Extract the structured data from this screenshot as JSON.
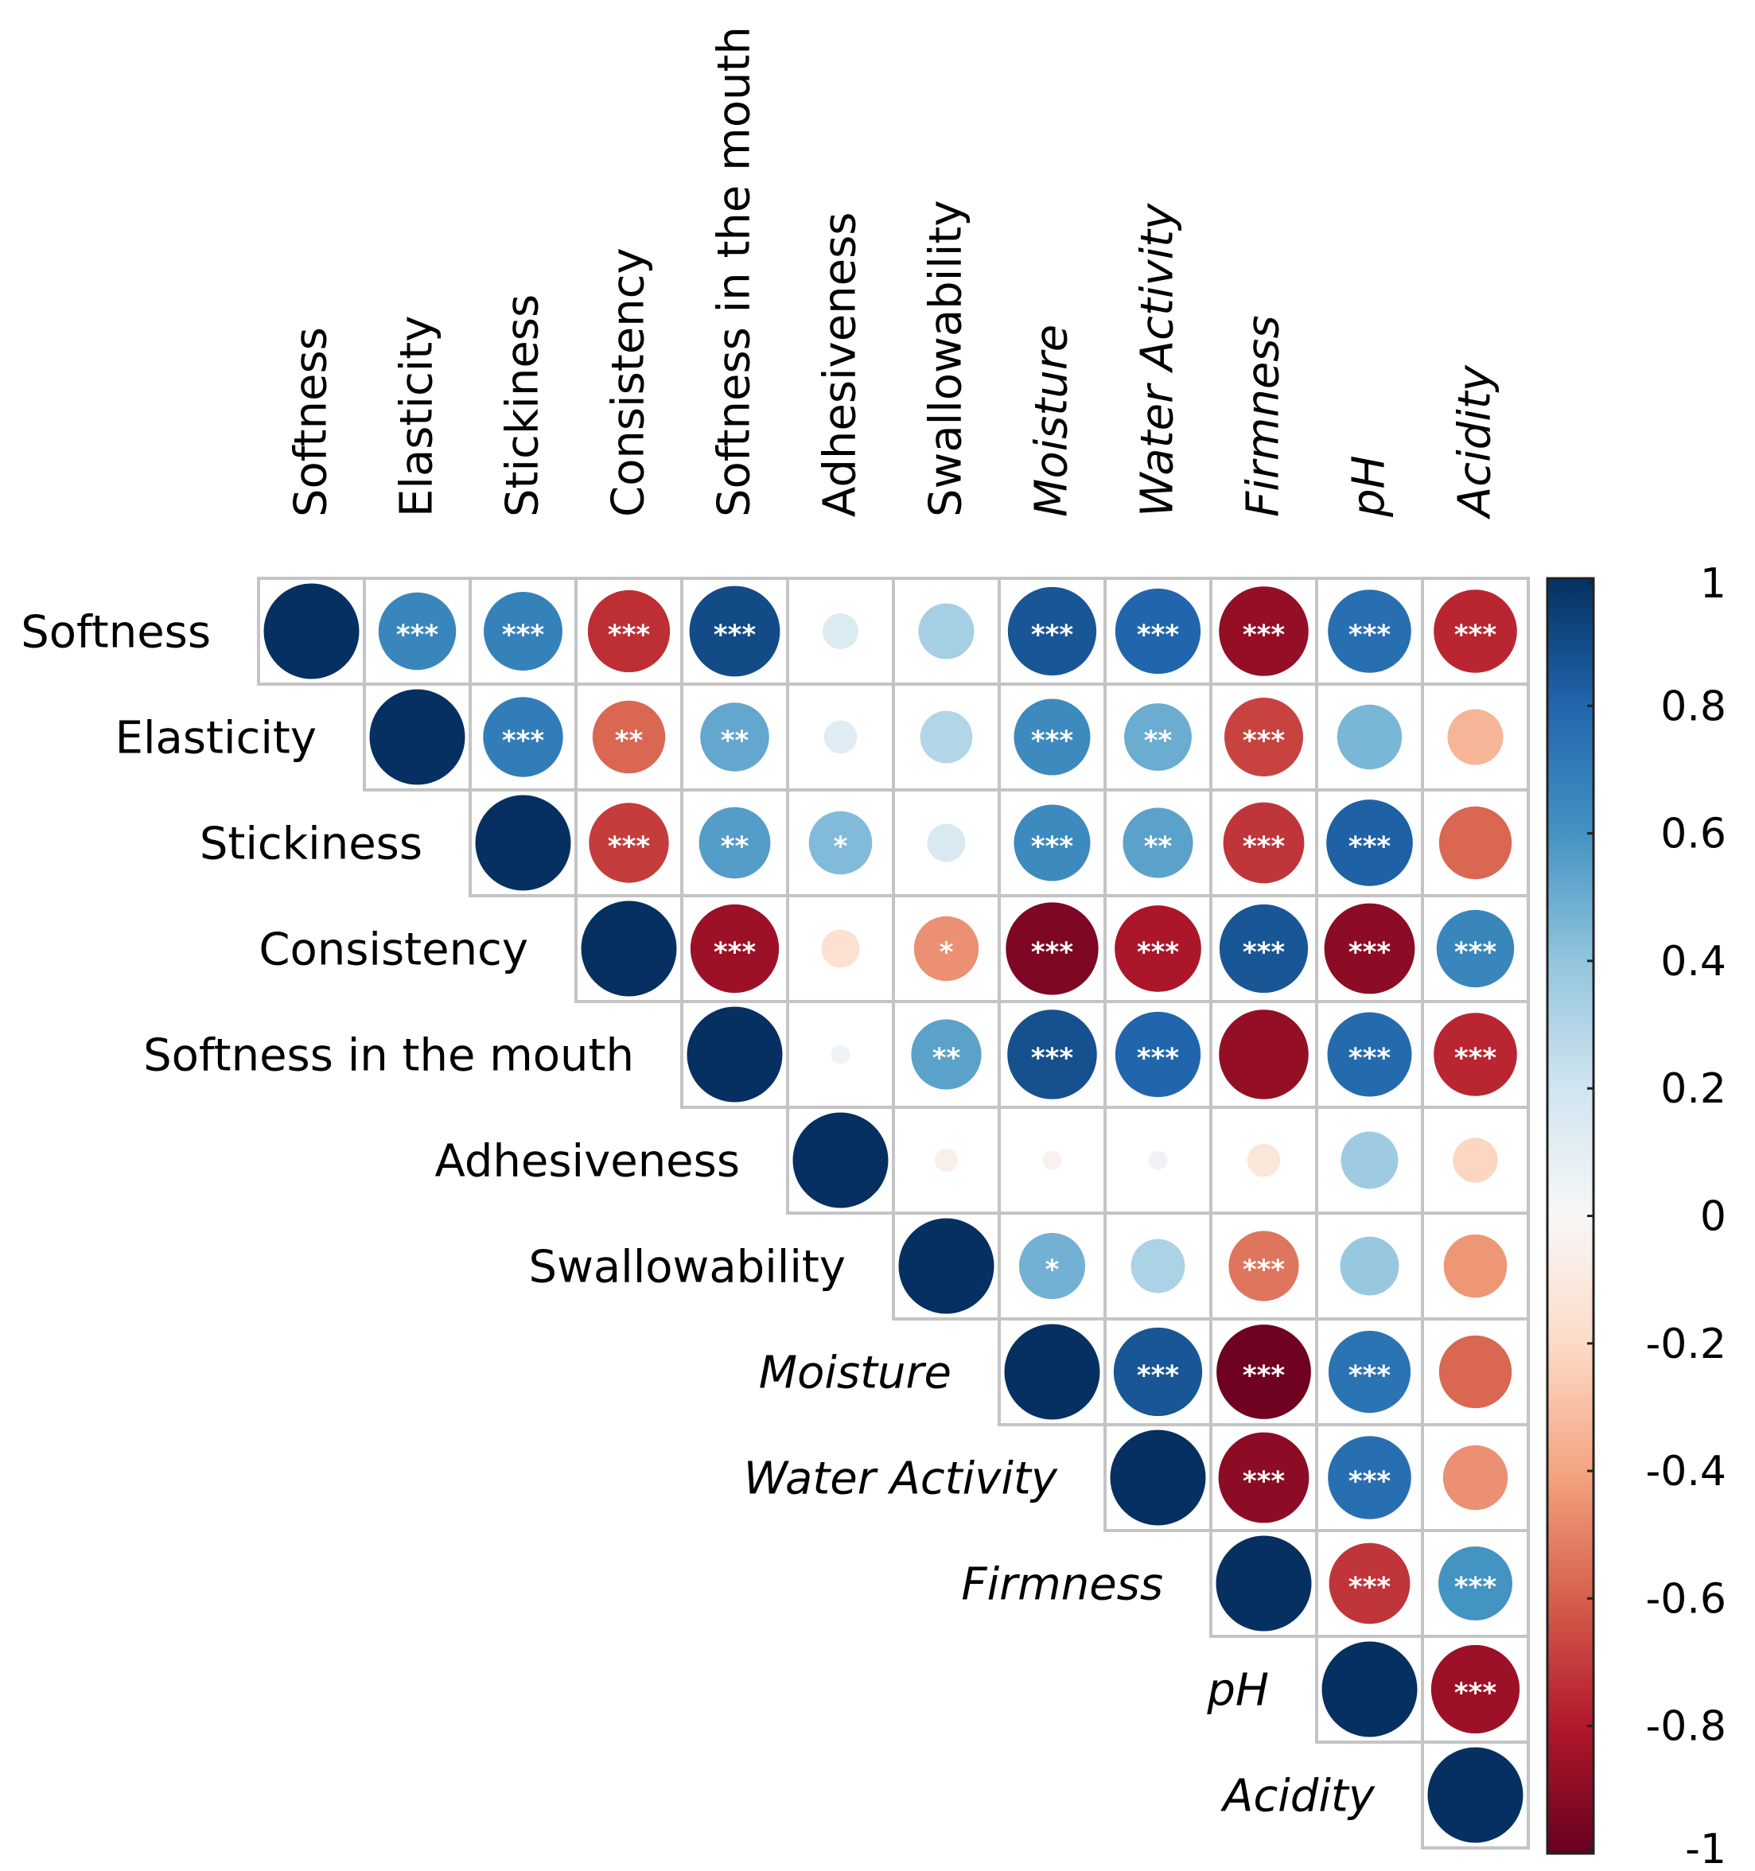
{
  "chart_data": {
    "type": "heatmap",
    "subtype": "correlation-matrix-upper-triangle",
    "variables": [
      "Softness",
      "Elasticity",
      "Stickiness",
      "Consistency",
      "Softness in the mouth",
      "Adhesiveness",
      "Swallowability",
      "Moisture",
      "Water Activity",
      "Firmness",
      "pH",
      "Acidity"
    ],
    "italic_variables": [
      "Moisture",
      "Water Activity",
      "Firmness",
      "pH",
      "Acidity"
    ],
    "correlations": [
      [
        1,
        0.66,
        0.68,
        -0.74,
        0.9,
        0.14,
        0.34,
        0.86,
        0.8,
        -0.88,
        0.76,
        -0.76
      ],
      [
        null,
        1,
        0.7,
        -0.58,
        0.52,
        0.12,
        0.3,
        0.64,
        0.5,
        -0.68,
        0.46,
        -0.34
      ],
      [
        null,
        null,
        1,
        -0.7,
        0.56,
        0.44,
        0.16,
        0.64,
        0.54,
        -0.72,
        0.82,
        -0.58
      ],
      [
        null,
        null,
        null,
        1,
        -0.86,
        -0.16,
        -0.46,
        -0.94,
        -0.82,
        0.86,
        -0.9,
        0.66
      ],
      [
        null,
        null,
        null,
        null,
        1,
        0.04,
        0.54,
        0.88,
        0.8,
        -0.88,
        0.78,
        -0.76
      ],
      [
        null,
        null,
        null,
        null,
        null,
        1,
        -0.06,
        -0.04,
        0.04,
        -0.12,
        0.36,
        -0.22
      ],
      [
        null,
        null,
        null,
        null,
        null,
        null,
        1,
        0.48,
        0.32,
        -0.54,
        0.38,
        -0.44
      ],
      [
        null,
        null,
        null,
        null,
        null,
        null,
        null,
        1,
        0.86,
        -0.98,
        0.74,
        -0.58
      ],
      [
        null,
        null,
        null,
        null,
        null,
        null,
        null,
        null,
        1,
        -0.9,
        0.76,
        -0.46
      ],
      [
        null,
        null,
        null,
        null,
        null,
        null,
        null,
        null,
        null,
        1,
        -0.72,
        0.6
      ],
      [
        null,
        null,
        null,
        null,
        null,
        null,
        null,
        null,
        null,
        null,
        1,
        -0.86
      ],
      [
        null,
        null,
        null,
        null,
        null,
        null,
        null,
        null,
        null,
        null,
        null,
        1
      ]
    ],
    "significance": [
      [
        "",
        "***",
        "***",
        "***",
        "***",
        "",
        "",
        "***",
        "***",
        "***",
        "***",
        "***"
      ],
      [
        "",
        "",
        "***",
        "**",
        "**",
        "",
        "",
        "***",
        "**",
        "***",
        "",
        ""
      ],
      [
        "",
        "",
        "",
        "***",
        "**",
        "*",
        "",
        "***",
        "**",
        "***",
        "***",
        ""
      ],
      [
        "",
        "",
        "",
        "",
        "***",
        "",
        "*",
        "***",
        "***",
        "***",
        "***",
        "***"
      ],
      [
        "",
        "",
        "",
        "",
        "",
        "",
        "**",
        "***",
        "***",
        "",
        "***",
        "***"
      ],
      [
        "",
        "",
        "",
        "",
        "",
        "",
        "",
        "",
        "",
        "",
        "",
        ""
      ],
      [
        "",
        "",
        "",
        "",
        "",
        "",
        "",
        "*",
        "",
        "***",
        "",
        ""
      ],
      [
        "",
        "",
        "",
        "",
        "",
        "",
        "",
        "",
        "***",
        "***",
        "***",
        ""
      ],
      [
        "",
        "",
        "",
        "",
        "",
        "",
        "",
        "",
        "",
        "***",
        "***",
        ""
      ],
      [
        "",
        "",
        "",
        "",
        "",
        "",
        "",
        "",
        "",
        "",
        "***",
        "***"
      ],
      [
        "",
        "",
        "",
        "",
        "",
        "",
        "",
        "",
        "",
        "",
        "",
        "***"
      ],
      [
        "",
        "",
        "",
        "",
        "",
        "",
        "",
        "",
        "",
        "",
        "",
        ""
      ]
    ],
    "colorbar": {
      "range": [
        -1,
        1
      ],
      "ticks": [
        "1",
        "0.8",
        "0.6",
        "0.4",
        "0.2",
        "0",
        "-0.2",
        "-0.4",
        "-0.6",
        "-0.8",
        "-1"
      ],
      "tick_values": [
        1,
        0.8,
        0.6,
        0.4,
        0.2,
        0,
        -0.2,
        -0.4,
        -0.6,
        -0.8,
        -1
      ],
      "colors": [
        "#67001f",
        "#b2182b",
        "#d6604d",
        "#f4a582",
        "#fddbc7",
        "#f7f7f7",
        "#d1e5f0",
        "#92c5de",
        "#4393c3",
        "#2166ac",
        "#053061"
      ]
    },
    "grid": true,
    "legend": "right"
  }
}
